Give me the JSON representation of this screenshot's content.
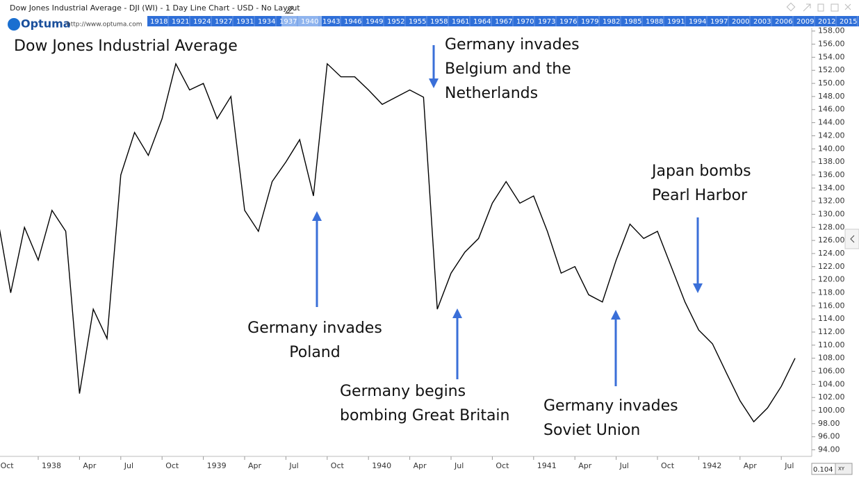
{
  "header": {
    "title": "Dow Jones Industrial Average - DJI (WI) - 1 Day Line Chart - USD - No Layout",
    "logo": "Optuma",
    "url": "http://www.optuma.com",
    "years": [
      "1918",
      "1921",
      "1924",
      "1927",
      "1931",
      "1934",
      "1937",
      "1940",
      "1943",
      "1946",
      "1949",
      "1952",
      "1955",
      "1958",
      "1961",
      "1964",
      "1967",
      "1970",
      "1973",
      "1976",
      "1979",
      "1982",
      "1985",
      "1988",
      "1991",
      "1994",
      "1997",
      "2000",
      "2003",
      "2006",
      "2009",
      "2012",
      "2015"
    ]
  },
  "footer": {
    "zoom": "0.104",
    "mode": "XY"
  },
  "chart_data": {
    "type": "line",
    "title": "Dow Jones Industrial Average",
    "x": [
      "1937-10",
      "1937-11",
      "1937-12",
      "1938-01",
      "1938-02",
      "1938-03",
      "1938-04",
      "1938-05",
      "1938-06",
      "1938-07",
      "1938-08",
      "1938-09",
      "1938-10",
      "1938-11",
      "1938-12",
      "1939-01",
      "1939-02",
      "1939-03",
      "1939-04",
      "1939-05",
      "1939-06",
      "1939-07",
      "1939-08",
      "1939-09",
      "1939-10",
      "1939-11",
      "1939-12",
      "1940-01",
      "1940-02",
      "1940-03",
      "1940-04",
      "1940-05",
      "1940-06",
      "1940-07",
      "1940-08",
      "1940-09",
      "1940-10",
      "1940-11",
      "1940-12",
      "1941-01",
      "1941-02",
      "1941-03",
      "1941-04",
      "1941-05",
      "1941-06",
      "1941-07",
      "1941-08",
      "1941-09",
      "1941-10",
      "1941-11",
      "1941-12",
      "1942-01",
      "1942-02",
      "1942-03",
      "1942-04",
      "1942-05",
      "1942-06",
      "1942-07",
      "1942-08"
    ],
    "series": [
      {
        "name": "DJI",
        "color": "#000000",
        "values": [
          130,
          118,
          128,
          123,
          130.6,
          127.4,
          102.6,
          115.5,
          111,
          136,
          142.5,
          139,
          144.6,
          153,
          149,
          150,
          144.6,
          148,
          130.6,
          127.4,
          135,
          138,
          141.4,
          132.8,
          153,
          151,
          151,
          149,
          146.8,
          147.9,
          149,
          147.9,
          115.5,
          121,
          124.2,
          126.3,
          131.7,
          135,
          131.7,
          132.8,
          127.4,
          121,
          122,
          117.7,
          116.6,
          123,
          128.5,
          126.3,
          127.4,
          122,
          116.6,
          112.3,
          110.2,
          105.8,
          101.5,
          98.3,
          100.4,
          103.7,
          108
        ]
      }
    ],
    "ylim": [
      93,
      158.5
    ],
    "yticks": [
      {
        "value": 94,
        "label": "94.00"
      },
      {
        "value": 96,
        "label": "96.00"
      },
      {
        "value": 98,
        "label": "98.00"
      },
      {
        "value": 100,
        "label": "100.00"
      },
      {
        "value": 102,
        "label": "102.00"
      },
      {
        "value": 104,
        "label": "104.00"
      },
      {
        "value": 106,
        "label": "106.00"
      },
      {
        "value": 108,
        "label": "108.00"
      },
      {
        "value": 110,
        "label": "110.00"
      },
      {
        "value": 112,
        "label": "112.00"
      },
      {
        "value": 114,
        "label": "114.00"
      },
      {
        "value": 116,
        "label": "116.00"
      },
      {
        "value": 118,
        "label": "118.00"
      },
      {
        "value": 120,
        "label": "120.00"
      },
      {
        "value": 122,
        "label": "122.00"
      },
      {
        "value": 124,
        "label": "124.00"
      },
      {
        "value": 126,
        "label": "126.00"
      },
      {
        "value": 128,
        "label": "128.00"
      },
      {
        "value": 130,
        "label": "130.00"
      },
      {
        "value": 132,
        "label": "132.00"
      },
      {
        "value": 134,
        "label": "134.00"
      },
      {
        "value": 136,
        "label": "136.00"
      },
      {
        "value": 138,
        "label": "138.00"
      },
      {
        "value": 140,
        "label": "140.00"
      },
      {
        "value": 142,
        "label": "142.00"
      },
      {
        "value": 144,
        "label": "144.00"
      },
      {
        "value": 146,
        "label": "146.00"
      },
      {
        "value": 148,
        "label": "148.00"
      },
      {
        "value": 150,
        "label": "150.00"
      },
      {
        "value": 152,
        "label": "152.00"
      },
      {
        "value": 154,
        "label": "154.00"
      },
      {
        "value": 156,
        "label": "156.00"
      },
      {
        "value": 158,
        "label": "158.00"
      }
    ],
    "xticks": [
      {
        "value": "1937-10",
        "label": "Oct"
      },
      {
        "value": "1938-01",
        "label": "1938"
      },
      {
        "value": "1938-04",
        "label": "Apr"
      },
      {
        "value": "1938-07",
        "label": "Jul"
      },
      {
        "value": "1938-10",
        "label": "Oct"
      },
      {
        "value": "1939-01",
        "label": "1939"
      },
      {
        "value": "1939-04",
        "label": "Apr"
      },
      {
        "value": "1939-07",
        "label": "Jul"
      },
      {
        "value": "1939-10",
        "label": "Oct"
      },
      {
        "value": "1940-01",
        "label": "1940"
      },
      {
        "value": "1940-04",
        "label": "Apr"
      },
      {
        "value": "1940-07",
        "label": "Jul"
      },
      {
        "value": "1940-10",
        "label": "Oct"
      },
      {
        "value": "1941-01",
        "label": "1941"
      },
      {
        "value": "1941-04",
        "label": "Apr"
      },
      {
        "value": "1941-07",
        "label": "Jul"
      },
      {
        "value": "1941-10",
        "label": "Oct"
      },
      {
        "value": "1942-01",
        "label": "1942"
      },
      {
        "value": "1942-04",
        "label": "Apr"
      },
      {
        "value": "1942-07",
        "label": "Jul"
      }
    ],
    "annotations": [
      [
        "Germany invades",
        "Belgium and the",
        "Netherlands"
      ],
      [
        "Germany invades",
        "Poland"
      ],
      [
        "Germany begins",
        "bombing Great Britain"
      ],
      [
        "Germany invades",
        "Soviet Union"
      ],
      [
        "Japan bombs",
        "Pearl Harbor"
      ]
    ]
  }
}
